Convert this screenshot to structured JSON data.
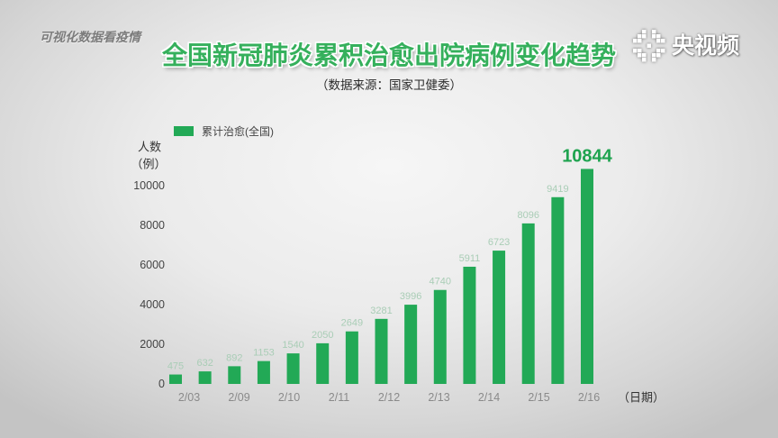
{
  "header": {
    "tag": "可视化数据看疫情",
    "logo_text": "央视频",
    "logo_icon": "video-logo-icon"
  },
  "chart_data": {
    "type": "bar",
    "title": "全国新冠肺炎累积治愈出院病例变化趋势",
    "subtitle": "（数据来源：国家卫健委）",
    "ylabel": "人数",
    "yunit": "（例）",
    "xlabel": "（日期）",
    "yticks": [
      0,
      2000,
      4000,
      6000,
      8000,
      10000
    ],
    "xticks": [
      "2/03",
      "2/09",
      "2/10",
      "2/11",
      "2/12",
      "2/13",
      "2/14",
      "2/15",
      "2/16"
    ],
    "series": [
      {
        "name": "累计治愈(全国)",
        "values": [
          475,
          632,
          892,
          1153,
          1540,
          2050,
          2649,
          3281,
          3996,
          4740,
          5911,
          6723,
          8096,
          9419,
          10844
        ]
      }
    ],
    "legend_position": "top-left",
    "grid": false,
    "colors": {
      "bar": "#22a956",
      "value_label": "#a9cdb6",
      "highlight_label": "#1ea34f",
      "title": "#35b05c"
    }
  }
}
